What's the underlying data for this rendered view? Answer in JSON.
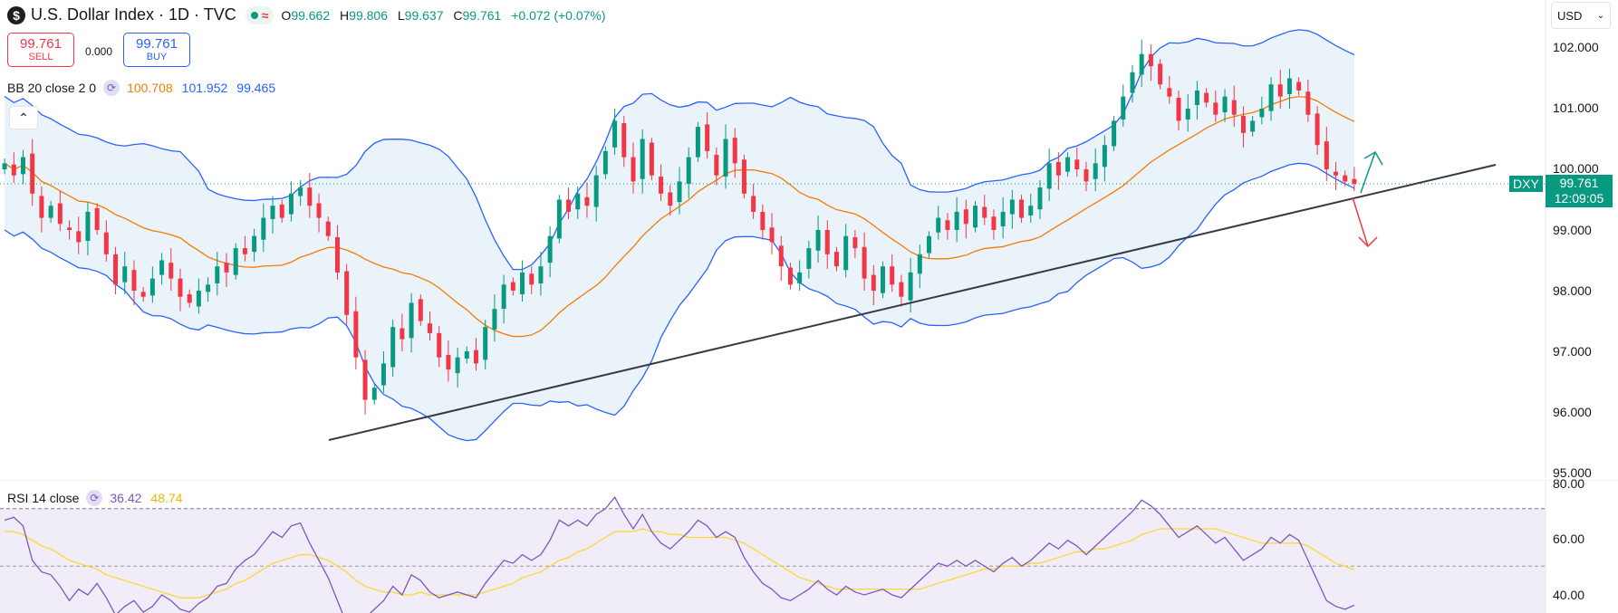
{
  "header": {
    "symbol_icon": "$",
    "title": "U.S. Dollar Index · 1D · TVC",
    "status_icon": "market-open-dot",
    "ohlc": [
      {
        "key": "O",
        "value": "99.662"
      },
      {
        "key": "H",
        "value": "99.806"
      },
      {
        "key": "L",
        "value": "99.637"
      },
      {
        "key": "C",
        "value": "99.761"
      }
    ],
    "change": "+0.072 (+0.07%)"
  },
  "trade": {
    "sell_price": "99.761",
    "sell_label": "SELL",
    "spread": "0.000",
    "buy_price": "99.761",
    "buy_label": "BUY"
  },
  "bb_legend": {
    "name": "BB 20 close 2 0",
    "basis": "100.708",
    "upper": "101.952",
    "lower": "99.465"
  },
  "rsi_legend": {
    "name": "RSI 14 close",
    "value": "36.42",
    "ma": "48.74"
  },
  "currency": "USD",
  "price_axis": {
    "labels": [
      "102.000",
      "101.000",
      "100.000",
      "99.000",
      "98.000",
      "97.000",
      "96.000",
      "95.000"
    ],
    "symbol_tag": "DXY",
    "last_price": "99.761",
    "countdown": "12:09:05"
  },
  "rsi_axis": {
    "labels": [
      "80.00",
      "60.00",
      "40.00"
    ]
  },
  "colors": {
    "up": "#089981",
    "down": "#f23645",
    "bb_band": "#2962ff",
    "bb_basis": "#f57c00",
    "bb_fill": "#eaf2fa",
    "rsi_line": "#7e57c2",
    "rsi_ma": "#fdd835",
    "rsi_fill": "#f0ecf8",
    "trendline": "#363a45"
  },
  "chart_data": [
    {
      "type": "candlestick",
      "title": "U.S. Dollar Index · 1D · TVC",
      "ylim": [
        95.0,
        102.3
      ],
      "closes": [
        100.1,
        99.9,
        100.2,
        99.6,
        99.2,
        99.4,
        99.1,
        99.0,
        98.8,
        99.3,
        99.0,
        98.6,
        98.1,
        98.4,
        98.0,
        97.9,
        98.2,
        98.5,
        98.2,
        97.9,
        97.8,
        98.0,
        98.1,
        98.4,
        98.3,
        98.7,
        98.6,
        98.9,
        99.2,
        99.4,
        99.2,
        99.6,
        99.7,
        99.4,
        99.2,
        98.9,
        98.3,
        97.6,
        96.9,
        96.2,
        96.4,
        96.8,
        97.4,
        97.2,
        97.8,
        97.5,
        97.3,
        96.9,
        96.7,
        96.9,
        97.0,
        96.8,
        97.4,
        97.7,
        98.1,
        98.0,
        98.3,
        98.1,
        98.4,
        98.9,
        99.5,
        99.3,
        99.6,
        99.4,
        99.9,
        100.3,
        100.8,
        100.2,
        99.8,
        100.5,
        99.9,
        99.6,
        99.4,
        99.8,
        100.2,
        100.7,
        100.3,
        99.9,
        100.5,
        100.1,
        99.6,
        99.3,
        99.0,
        98.8,
        98.4,
        98.1,
        98.3,
        98.7,
        99.0,
        98.6,
        98.4,
        98.9,
        98.7,
        98.2,
        98.0,
        98.4,
        98.1,
        97.9,
        98.3,
        98.6,
        98.9,
        99.2,
        99.0,
        99.3,
        99.1,
        99.4,
        99.2,
        99.0,
        99.3,
        99.5,
        99.2,
        99.4,
        99.7,
        100.1,
        99.9,
        100.2,
        100.0,
        99.8,
        100.1,
        100.4,
        100.8,
        101.2,
        101.6,
        101.9,
        101.7,
        101.4,
        101.2,
        100.8,
        101.0,
        101.3,
        101.1,
        100.9,
        101.2,
        100.9,
        100.6,
        100.8,
        101.0,
        101.4,
        101.2,
        101.5,
        101.3,
        100.9,
        100.4,
        100.0,
        99.9,
        99.8,
        99.76
      ]
    },
    {
      "type": "line",
      "title": "RSI 14 close",
      "ylim": [
        30,
        80
      ],
      "reference_lines": [
        70,
        50
      ],
      "series": [
        {
          "name": "RSI",
          "values": [
            66,
            67,
            64,
            52,
            48,
            47,
            43,
            38,
            42,
            40,
            44,
            39,
            33,
            36,
            38,
            34,
            36,
            40,
            38,
            35,
            34,
            37,
            39,
            43,
            44,
            49,
            52,
            54,
            58,
            62,
            60,
            64,
            65,
            58,
            52,
            46,
            38,
            30,
            27,
            32,
            35,
            38,
            43,
            40,
            47,
            45,
            41,
            39,
            40,
            41,
            40,
            39,
            44,
            48,
            52,
            51,
            54,
            52,
            54,
            59,
            66,
            64,
            66,
            64,
            68,
            70,
            74,
            68,
            63,
            68,
            62,
            58,
            56,
            59,
            62,
            66,
            64,
            60,
            62,
            60,
            53,
            48,
            44,
            42,
            39,
            38,
            40,
            42,
            45,
            42,
            40,
            43,
            41,
            40,
            41,
            42,
            40,
            39,
            42,
            45,
            48,
            51,
            50,
            52,
            50,
            52,
            50,
            48,
            51,
            53,
            50,
            52,
            55,
            58,
            56,
            59,
            57,
            54,
            57,
            60,
            63,
            66,
            69,
            73,
            71,
            68,
            64,
            60,
            62,
            64,
            61,
            58,
            60,
            56,
            52,
            54,
            56,
            60,
            58,
            61,
            59,
            52,
            45,
            38,
            36,
            35,
            36.42
          ]
        },
        {
          "name": "RSI-based MA",
          "values": [
            62,
            62,
            61,
            59,
            57,
            56,
            54,
            52,
            51,
            50,
            49,
            47,
            46,
            45,
            44,
            43,
            42,
            41,
            40,
            39,
            39,
            39,
            40,
            41,
            42,
            44,
            45,
            47,
            49,
            51,
            52,
            53,
            54,
            54,
            53,
            52,
            50,
            48,
            45,
            43,
            42,
            41,
            41,
            40,
            40,
            41,
            40,
            40,
            40,
            40,
            40,
            40,
            41,
            42,
            43,
            44,
            46,
            47,
            48,
            50,
            52,
            53,
            55,
            56,
            58,
            60,
            62,
            62,
            62,
            63,
            62,
            62,
            61,
            61,
            60,
            60,
            60,
            60,
            60,
            59,
            58,
            56,
            54,
            52,
            50,
            48,
            46,
            45,
            44,
            43,
            42,
            42,
            42,
            42,
            42,
            42,
            42,
            42,
            42,
            42,
            43,
            44,
            45,
            46,
            47,
            48,
            49,
            49,
            50,
            50,
            50,
            51,
            51,
            52,
            53,
            54,
            55,
            55,
            56,
            56,
            57,
            58,
            59,
            61,
            62,
            63,
            63,
            63,
            63,
            63,
            63,
            63,
            62,
            61,
            60,
            59,
            58,
            58,
            58,
            58,
            58,
            57,
            55,
            53,
            51,
            50,
            48.74
          ]
        }
      ]
    }
  ]
}
